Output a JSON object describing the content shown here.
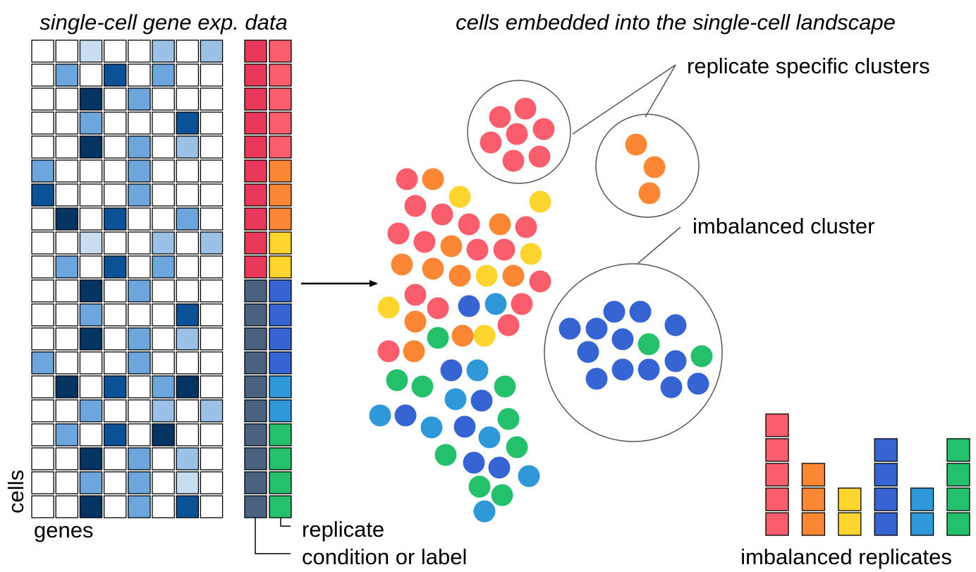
{
  "titles": {
    "left": "single-cell gene exp. data",
    "right": "cells embedded into the single-cell landscape"
  },
  "labels": {
    "cells": "cells",
    "genes": "genes",
    "replicate": "replicate",
    "condition": "condition or label",
    "replicate_specific": "replicate specific clusters",
    "imbalanced_cluster": "imbalanced cluster",
    "imbalanced_replicates": "imbalanced replicates"
  },
  "colors": {
    "expr_levels": [
      "#ffffff",
      "#c9ddf1",
      "#9bc2e6",
      "#6ca6dc",
      "#0b5196",
      "#053463"
    ],
    "condition": {
      "A": "#e8395a",
      "B": "#4a627f"
    },
    "replicate": {
      "r1": "#fa5d6b",
      "r2": "#fb8634",
      "r3": "#fdd52e",
      "r4": "#3665d3",
      "r5": "#2e98d9",
      "r6": "#25c06c"
    }
  },
  "matrix": {
    "expression": [
      [
        0,
        0,
        1,
        0,
        0,
        2,
        0,
        2
      ],
      [
        0,
        3,
        0,
        4,
        0,
        3,
        0,
        0
      ],
      [
        0,
        0,
        5,
        0,
        3,
        0,
        0,
        0
      ],
      [
        0,
        0,
        3,
        0,
        0,
        0,
        4,
        0
      ],
      [
        0,
        0,
        5,
        0,
        3,
        0,
        2,
        0
      ],
      [
        3,
        0,
        0,
        0,
        3,
        0,
        0,
        0
      ],
      [
        4,
        0,
        0,
        0,
        3,
        0,
        0,
        0
      ],
      [
        0,
        5,
        0,
        4,
        0,
        0,
        3,
        0
      ],
      [
        0,
        0,
        1,
        0,
        0,
        2,
        0,
        2
      ],
      [
        0,
        3,
        0,
        4,
        0,
        3,
        0,
        0
      ],
      [
        0,
        0,
        5,
        0,
        3,
        0,
        0,
        0
      ],
      [
        0,
        0,
        3,
        0,
        0,
        0,
        4,
        0
      ],
      [
        0,
        0,
        5,
        0,
        3,
        0,
        2,
        0
      ],
      [
        3,
        0,
        0,
        0,
        3,
        0,
        0,
        0
      ],
      [
        0,
        5,
        0,
        4,
        0,
        3,
        5,
        0
      ],
      [
        0,
        0,
        3,
        0,
        0,
        2,
        0,
        2
      ],
      [
        0,
        3,
        0,
        4,
        0,
        5,
        0,
        0
      ],
      [
        0,
        0,
        5,
        0,
        3,
        0,
        2,
        0
      ],
      [
        0,
        0,
        3,
        0,
        3,
        0,
        1,
        0
      ],
      [
        0,
        0,
        5,
        0,
        3,
        0,
        4,
        0
      ]
    ],
    "condition": [
      "A",
      "A",
      "A",
      "A",
      "A",
      "A",
      "A",
      "A",
      "A",
      "A",
      "B",
      "B",
      "B",
      "B",
      "B",
      "B",
      "B",
      "B",
      "B",
      "B"
    ],
    "replicate": [
      "r1",
      "r1",
      "r1",
      "r1",
      "r1",
      "r2",
      "r2",
      "r2",
      "r3",
      "r3",
      "r4",
      "r4",
      "r4",
      "r4",
      "r5",
      "r5",
      "r6",
      "r6",
      "r6",
      "r6"
    ]
  },
  "landscape": [
    {
      "r": "r1"
    },
    {
      "r": "r2"
    },
    {
      "r": "r3"
    },
    {
      "r": "r1"
    },
    {
      "r": "r3"
    },
    {
      "r": "r1"
    },
    {
      "r": "r1"
    },
    {
      "r": "r2"
    },
    {
      "r": "r1"
    },
    {
      "r": "r1"
    },
    {
      "r": "r1"
    },
    {
      "r": "r2"
    },
    {
      "r": "r1"
    },
    {
      "r": "r1"
    },
    {
      "r": "r3"
    },
    {
      "r": "r2"
    },
    {
      "r": "r2"
    },
    {
      "r": "r2"
    },
    {
      "r": "r3"
    },
    {
      "r": "r2"
    },
    {
      "r": "r1"
    },
    {
      "r": "r1"
    },
    {
      "r": "r4"
    },
    {
      "r": "r5"
    },
    {
      "r": "r1"
    },
    {
      "r": "r3"
    },
    {
      "r": "r1"
    },
    {
      "r": "r2"
    },
    {
      "r": "r1"
    },
    {
      "r": "r6"
    },
    {
      "r": "r2"
    },
    {
      "r": "r3"
    },
    {
      "r": "r1"
    },
    {
      "r": "r2"
    },
    {
      "r": "r4"
    },
    {
      "r": "r5"
    },
    {
      "r": "r6"
    },
    {
      "r": "r6"
    },
    {
      "r": "r5"
    },
    {
      "r": "r4"
    },
    {
      "r": "r6"
    },
    {
      "r": "r5"
    },
    {
      "r": "r4"
    },
    {
      "r": "r5"
    },
    {
      "r": "r4"
    },
    {
      "r": "r6"
    },
    {
      "r": "r5"
    },
    {
      "r": "r6"
    },
    {
      "r": "r6"
    },
    {
      "r": "r4"
    },
    {
      "r": "r4"
    },
    {
      "r": "r5"
    },
    {
      "r": "r6"
    },
    {
      "r": "r6"
    },
    {
      "r": "r5"
    }
  ],
  "replicate_cluster_1": [
    "r1",
    "r1",
    "r1",
    "r1",
    "r1",
    "r1",
    "r1"
  ],
  "replicate_cluster_2": [
    "r2",
    "r2",
    "r2"
  ],
  "imbalanced_cluster_cells": [
    "r4",
    "r4",
    "r4",
    "r4",
    "r4",
    "r4",
    "r4",
    "r6",
    "r4",
    "r4",
    "r4",
    "r4",
    "r6",
    "r4",
    "r4",
    "r5"
  ],
  "replicate_bars": [
    {
      "r": "r1",
      "count": 5
    },
    {
      "r": "r2",
      "count": 3
    },
    {
      "r": "r3",
      "count": 2
    },
    {
      "r": "r4",
      "count": 4
    },
    {
      "r": "r5",
      "count": 2
    },
    {
      "r": "r6",
      "count": 4
    }
  ]
}
